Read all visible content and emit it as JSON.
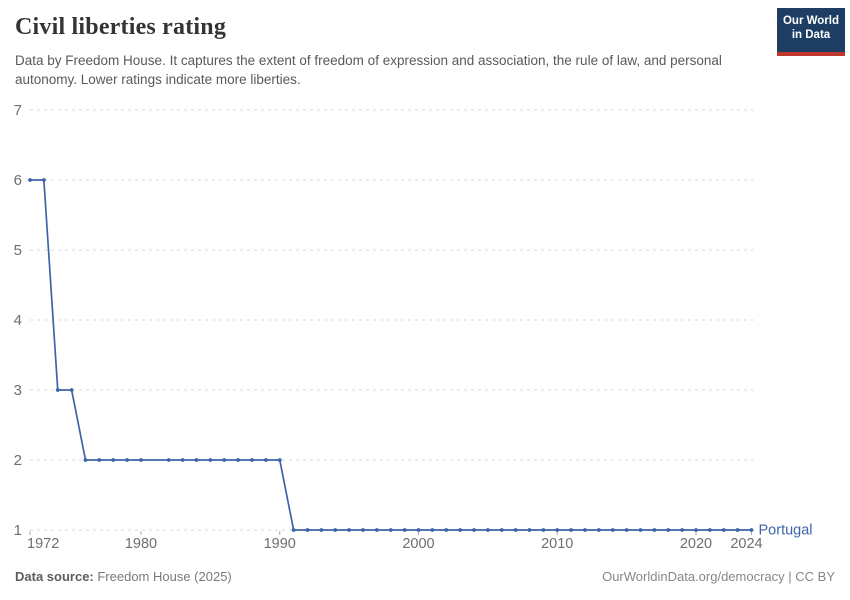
{
  "header": {
    "title": "Civil liberties rating",
    "subtitle": "Data by Freedom House. It captures the extent of freedom of expression and association, the rule of law, and personal autonomy. Lower ratings indicate more liberties."
  },
  "logo": {
    "line1": "Our World",
    "line2": "in Data",
    "bg_color": "#1d3d63",
    "bar_color": "#c0372c"
  },
  "chart_data": {
    "type": "line",
    "title": "Civil liberties rating",
    "entity": "Portugal",
    "line_color": "#3d64a8",
    "xlabel": "",
    "ylabel": "",
    "xlim": [
      1972,
      2024
    ],
    "ylim": [
      1,
      7
    ],
    "yticks": [
      1,
      2,
      3,
      4,
      5,
      6,
      7
    ],
    "xticks": [
      1972,
      1980,
      1990,
      2000,
      2010,
      2020,
      2024
    ],
    "grid": "horizontal-dashed",
    "legend_position": "end-of-line",
    "x": [
      1972,
      1973,
      1974,
      1975,
      1976,
      1977,
      1978,
      1979,
      1980,
      1981,
      1982,
      1983,
      1984,
      1985,
      1986,
      1987,
      1988,
      1989,
      1990,
      1991,
      1992,
      1993,
      1994,
      1995,
      1996,
      1997,
      1998,
      1999,
      2000,
      2001,
      2002,
      2003,
      2004,
      2005,
      2006,
      2007,
      2008,
      2009,
      2010,
      2011,
      2012,
      2013,
      2014,
      2015,
      2016,
      2017,
      2018,
      2019,
      2020,
      2021,
      2022,
      2023,
      2024
    ],
    "values": [
      6,
      6,
      3,
      3,
      2,
      2,
      2,
      2,
      2,
      2,
      2,
      2,
      2,
      2,
      2,
      2,
      2,
      2,
      2,
      1,
      1,
      1,
      1,
      1,
      1,
      1,
      1,
      1,
      1,
      1,
      1,
      1,
      1,
      1,
      1,
      1,
      1,
      1,
      1,
      1,
      1,
      1,
      1,
      1,
      1,
      1,
      1,
      1,
      1,
      1,
      1,
      1,
      1
    ],
    "years_without_marker": [
      1981
    ]
  },
  "footer": {
    "source_label": "Data source:",
    "source_value": " Freedom House (2025)",
    "url": "OurWorldinData.org/democracy",
    "separator": " | ",
    "license": "CC BY"
  }
}
